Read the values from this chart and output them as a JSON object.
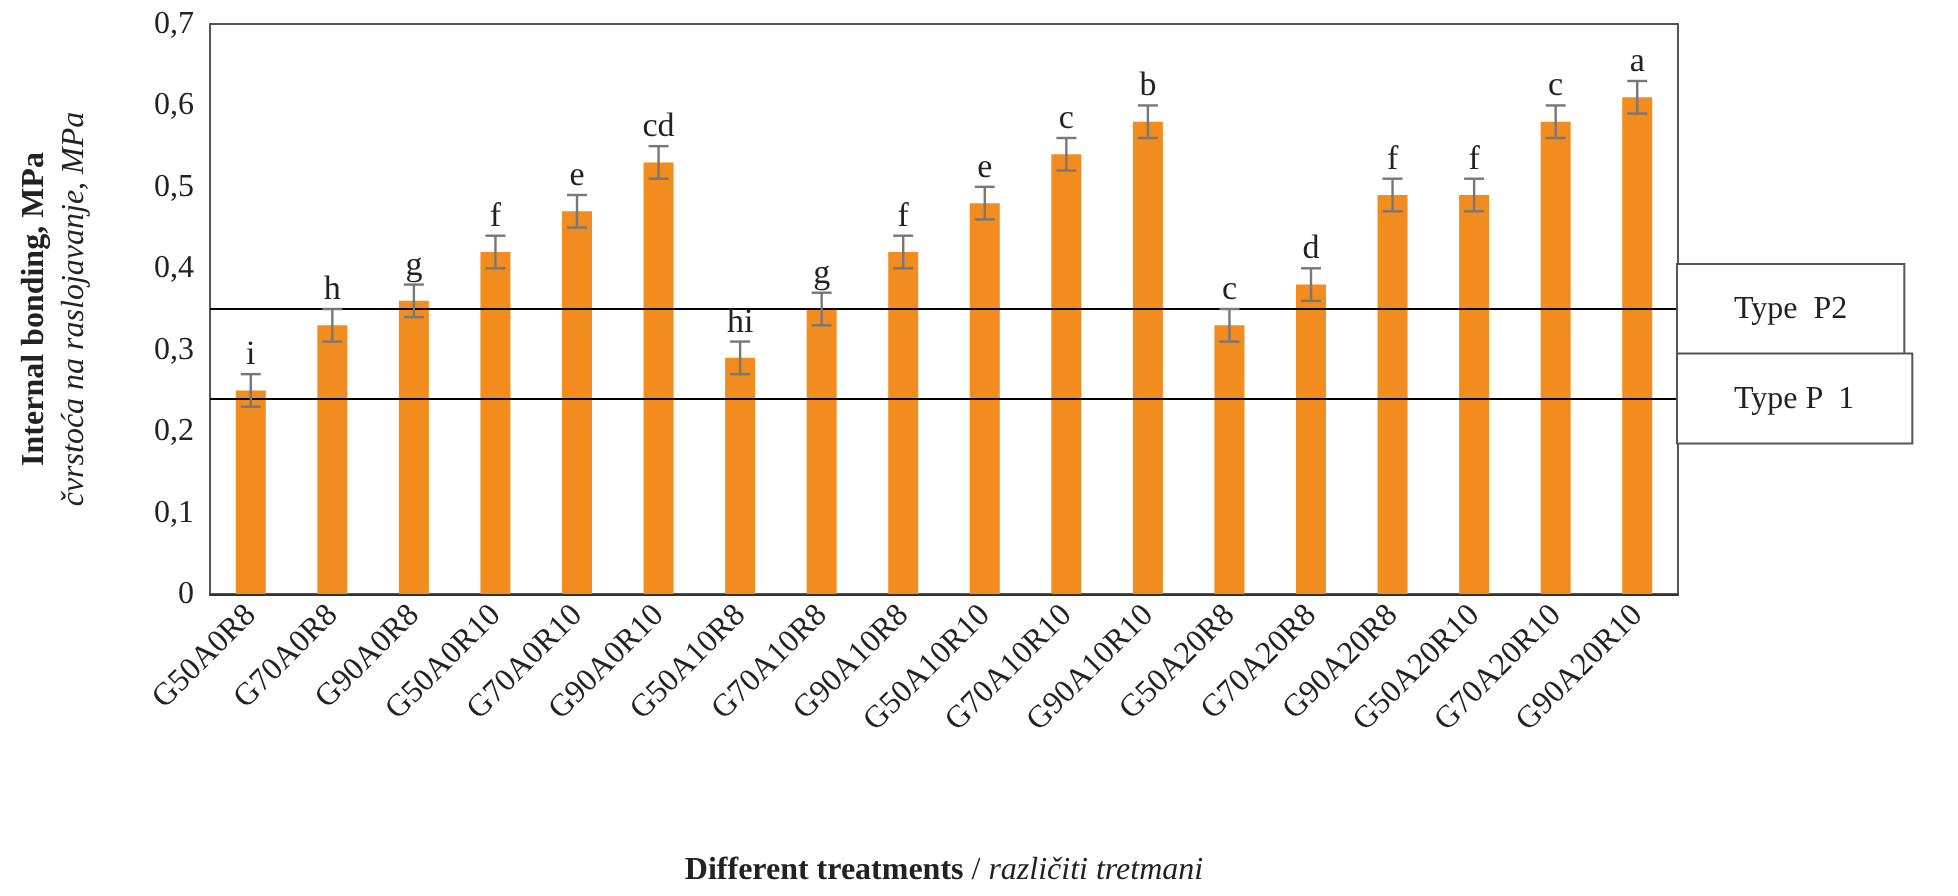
{
  "chart_data": {
    "type": "bar",
    "xlabel": "Different treatments / različiti tretmani",
    "ylabel": "Internal bonding, MPa\nčvrstoća na raslojavanje, MPa",
    "categories": [
      "G50A0R8",
      "G70A0R8",
      "G90A0R8",
      "G50A0R10",
      "G70A0R10",
      "G90A0R10",
      "G50A10R8",
      "G70A10R8",
      "G90A10R8",
      "G50A10R10",
      "G70A10R10",
      "G90A10R10",
      "G50A20R8",
      "G70A20R8",
      "G90A20R8",
      "G50A20R10",
      "G70A20R10",
      "G90A20R10"
    ],
    "values": [
      0.25,
      0.33,
      0.36,
      0.42,
      0.47,
      0.53,
      0.29,
      0.35,
      0.42,
      0.48,
      0.54,
      0.58,
      0.33,
      0.38,
      0.49,
      0.49,
      0.58,
      0.61
    ],
    "errors": [
      0.02,
      0.02,
      0.02,
      0.02,
      0.02,
      0.02,
      0.02,
      0.02,
      0.02,
      0.02,
      0.02,
      0.02,
      0.02,
      0.02,
      0.02,
      0.02,
      0.02,
      0.02
    ],
    "value_labels": [
      "i",
      "h",
      "g",
      "f",
      "e",
      "cd",
      "hi",
      "g",
      "f",
      "e",
      "c",
      "b",
      "c",
      "d",
      "f",
      "f",
      "c",
      "a"
    ],
    "color": "#f28c1e",
    "ylim": [
      0,
      0.7
    ],
    "yticks": [
      0,
      {
        "value": 0.1,
        "label": "0,1"
      },
      {
        "value": 0.2,
        "label": "0,2"
      },
      {
        "value": 0.3,
        "label": "0,3"
      },
      {
        "value": 0.4,
        "label": "0,4"
      },
      {
        "value": 0.5,
        "label": "0,5"
      },
      {
        "value": 0.6,
        "label": "0,6"
      },
      {
        "value": 0.7,
        "label": "0,7"
      }
    ],
    "ref_lines": [
      {
        "axis": "y",
        "value": 0.35,
        "label": "Type  P2",
        "color": "#000000"
      },
      {
        "axis": "y",
        "value": 0.24,
        "label": "Type P  1",
        "color": "#000000"
      }
    ],
    "grid": false
  }
}
